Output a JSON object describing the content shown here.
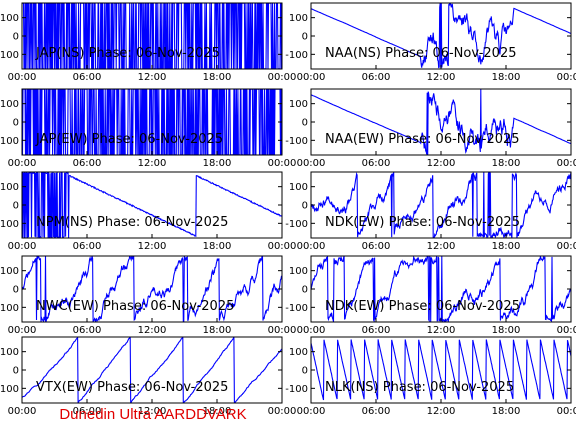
{
  "footer": "Dunedin Ultra AARDDVARK",
  "colors": {
    "trace": "#0000ff",
    "axes": "#000000",
    "footer": "#e00000"
  },
  "chart_data": [
    {
      "type": "line",
      "title": "JAP(NS) Phase: 06-Nov-2025",
      "x_ticks": [
        "00:00",
        "06:00",
        "12:00",
        "18:00",
        "00:00"
      ],
      "y_ticks": [
        100,
        0,
        -100
      ],
      "ylim": [
        -180,
        180
      ],
      "style": "saturated",
      "seed": 11
    },
    {
      "type": "line",
      "title": "NAA(NS) Phase: 06-Nov-2025",
      "x_ticks": [
        "00:00",
        "06:00",
        "12:00",
        "18:00",
        "00:00"
      ],
      "y_ticks": [
        100,
        0,
        -100
      ],
      "ylim": [
        -180,
        180
      ],
      "style": "sweep",
      "seed": 23
    },
    {
      "type": "line",
      "title": "JAP(EW) Phase: 06-Nov-2025",
      "x_ticks": [
        "00:00",
        "06:00",
        "12:00",
        "18:00",
        "00:00"
      ],
      "y_ticks": [
        100,
        0,
        -100
      ],
      "ylim": [
        -180,
        180
      ],
      "style": "saturated",
      "seed": 37
    },
    {
      "type": "line",
      "title": "NAA(EW) Phase: 06-Nov-2025",
      "x_ticks": [
        "00:00",
        "06:00",
        "12:00",
        "18:00",
        "00:00"
      ],
      "y_ticks": [
        100,
        0,
        -100
      ],
      "ylim": [
        -180,
        180
      ],
      "style": "sweep",
      "seed": 41
    },
    {
      "type": "line",
      "title": "NPM(NS) Phase: 06-Nov-2025",
      "x_ticks": [
        "00:00",
        "06:00",
        "12:00",
        "18:00",
        "00:00"
      ],
      "y_ticks": [
        100,
        0,
        -100
      ],
      "ylim": [
        -180,
        180
      ],
      "style": "decay",
      "seed": 53
    },
    {
      "type": "line",
      "title": "NDK(EW) Phase: 06-Nov-2025",
      "x_ticks": [
        "00:00",
        "06:00",
        "12:00",
        "18:00",
        "00:00"
      ],
      "y_ticks": [
        100,
        0,
        -100
      ],
      "ylim": [
        -180,
        180
      ],
      "style": "wrap",
      "seed": 67
    },
    {
      "type": "line",
      "title": "NWC(EW) Phase: 06-Nov-2025",
      "x_ticks": [
        "00:00",
        "06:00",
        "12:00",
        "18:00",
        "00:00"
      ],
      "y_ticks": [
        100,
        0,
        -100
      ],
      "ylim": [
        -180,
        180
      ],
      "style": "wrap",
      "seed": 71
    },
    {
      "type": "line",
      "title": "NDK(EW) Phase: 06-Nov-2025",
      "x_ticks": [
        "00:00",
        "06:00",
        "12:00",
        "18:00",
        "00:00"
      ],
      "y_ticks": [
        100,
        0,
        -100
      ],
      "ylim": [
        -180,
        180
      ],
      "style": "wrap",
      "seed": 83
    },
    {
      "type": "line",
      "title": "VTX(EW) Phase: 06-Nov-2025",
      "x_ticks": [
        "00:00",
        "06:00",
        "12:00",
        "18:00",
        "00:00"
      ],
      "y_ticks": [
        100,
        0,
        -100
      ],
      "ylim": [
        -180,
        180
      ],
      "style": "ramp",
      "seed": 97
    },
    {
      "type": "line",
      "title": "NLK(NS) Phase: 06-Nov-2025",
      "x_ticks": [
        "00:00",
        "06:00",
        "12:00",
        "18:00",
        "00:00"
      ],
      "y_ticks": [
        100,
        0,
        -100
      ],
      "ylim": [
        -180,
        180
      ],
      "style": "sawtooth",
      "seed": 101
    }
  ]
}
